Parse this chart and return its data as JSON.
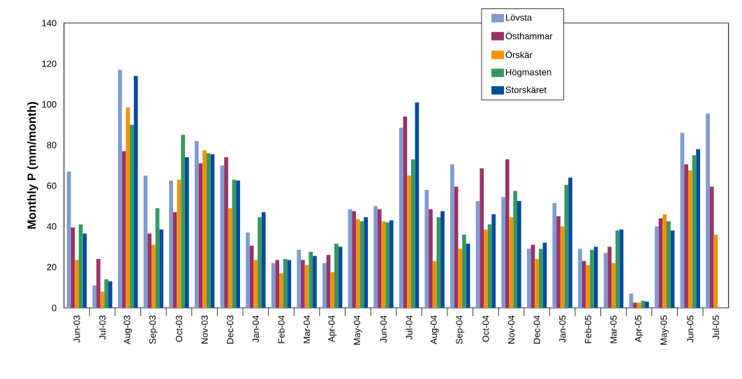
{
  "chart_data": {
    "type": "bar",
    "ylabel": "Monthly P (mm/month)",
    "categories": [
      "Jun-03",
      "Jul-03",
      "Aug-03",
      "Sep-03",
      "Oct-03",
      "Nov-03",
      "Dec-03",
      "Jan-04",
      "Feb-04",
      "Mar-04",
      "Apr-04",
      "May-04",
      "Jun-04",
      "Jul-04",
      "Aug-04",
      "Sep-04",
      "Oct-04",
      "Nov-04",
      "Dec-04",
      "Jan-05",
      "Feb-05",
      "Mar-05",
      "Apr-05",
      "May-05",
      "Jun-05",
      "Jul-05"
    ],
    "series": [
      {
        "name": "Lövsta",
        "color": "#7f9bd0",
        "values": [
          67,
          11,
          117,
          65,
          62.5,
          82,
          70,
          37,
          22,
          28.5,
          22,
          48.5,
          50,
          88.5,
          58,
          70.5,
          52.5,
          54.5,
          29,
          51.5,
          29,
          27,
          7,
          40,
          86,
          95.5
        ]
      },
      {
        "name": "Östhammar",
        "color": "#993366",
        "values": [
          39.5,
          24,
          77,
          36.5,
          47,
          71,
          74,
          30.5,
          23.5,
          23.5,
          26,
          47.5,
          48.5,
          94,
          48.5,
          59.5,
          68.5,
          73,
          31,
          45,
          23,
          30,
          2.5,
          44,
          70.5,
          59.5
        ]
      },
      {
        "name": "Örskär",
        "color": "#f39200",
        "values": [
          23.5,
          8,
          98.5,
          31,
          63,
          77.5,
          49,
          23.5,
          17,
          21,
          17.5,
          43.5,
          42.5,
          65,
          23,
          29,
          38.5,
          44.5,
          24,
          40,
          21,
          22,
          2.5,
          46,
          67.5,
          36
        ]
      },
      {
        "name": "Högmasten",
        "color": "#36985e",
        "values": [
          41,
          14,
          90,
          49,
          85,
          76,
          63,
          44.5,
          24,
          27.5,
          31.5,
          42.5,
          42,
          73,
          44.5,
          36,
          41,
          57.5,
          29,
          60.5,
          28.5,
          38,
          3.5,
          42.5,
          75,
          null
        ]
      },
      {
        "name": "Storskäret",
        "color": "#004b9e",
        "values": [
          36.5,
          13,
          114,
          38.5,
          74,
          75.5,
          62.5,
          47,
          23.5,
          25.5,
          30,
          44.5,
          43,
          101,
          47.5,
          31.5,
          46,
          52.5,
          32,
          64,
          30,
          38.5,
          3,
          38,
          78,
          null
        ]
      }
    ],
    "ylim": [
      0,
      140
    ],
    "yticks": [
      0,
      20,
      40,
      60,
      80,
      100,
      120,
      140
    ],
    "grid": false,
    "legend": "top right"
  }
}
